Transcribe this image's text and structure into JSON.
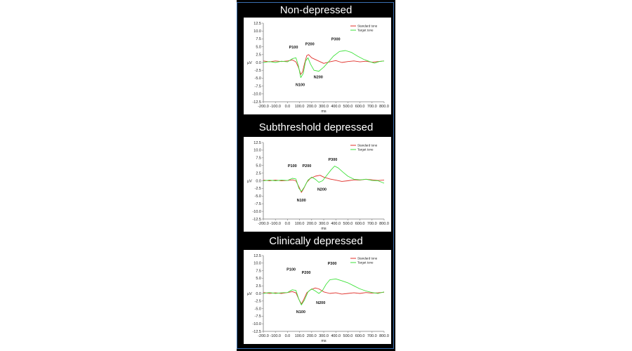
{
  "colors": {
    "background": "#ffffff",
    "figure": "#000000",
    "frame": "#3a6fb0",
    "standard_tone": "#e0302a",
    "target_tone": "#3ee23a",
    "axis": "#7a7a7a",
    "plot_area": "#ffffff"
  },
  "chart_data": [
    {
      "type": "line",
      "title": "Non-depressed",
      "xlabel": "ms",
      "ylabel": "µV",
      "xlim": [
        -200,
        800
      ],
      "ylim": [
        -12.5,
        12.5
      ],
      "x_ticks": [
        "-200.0",
        "-100.0",
        "0.0",
        "100.0",
        "200.0",
        "300.0",
        "400.0",
        "500.0",
        "600.0",
        "700.0",
        "800.0"
      ],
      "y_ticks": [
        "12.5",
        "10.0",
        "7.5",
        "5.0",
        "2.5",
        "0.0",
        "-2.5",
        "-5.0",
        "-7.5",
        "-10.0",
        "-12.5"
      ],
      "legend_position": "top-right",
      "series": [
        {
          "name": "Standard tone",
          "color": "#e0302a",
          "points": [
            [
              -200,
              0.5
            ],
            [
              -150,
              0.2
            ],
            [
              -100,
              0.5
            ],
            [
              -50,
              0.3
            ],
            [
              0,
              0.5
            ],
            [
              40,
              0.8
            ],
            [
              70,
              0.2
            ],
            [
              90,
              -1.5
            ],
            [
              110,
              -3.8
            ],
            [
              125,
              -3.0
            ],
            [
              140,
              -0.5
            ],
            [
              160,
              2.2
            ],
            [
              175,
              2.5
            ],
            [
              200,
              1.5
            ],
            [
              250,
              0.6
            ],
            [
              300,
              -0.3
            ],
            [
              350,
              0.2
            ],
            [
              400,
              0.6
            ],
            [
              450,
              0.0
            ],
            [
              500,
              0.3
            ],
            [
              550,
              0.5
            ],
            [
              600,
              0.2
            ],
            [
              650,
              0.4
            ],
            [
              700,
              0.1
            ],
            [
              750,
              0.3
            ],
            [
              800,
              0.5
            ]
          ]
        },
        {
          "name": "Target tone",
          "color": "#3ee23a",
          "points": [
            [
              -200,
              0.0
            ],
            [
              -150,
              0.3
            ],
            [
              -100,
              0.0
            ],
            [
              -50,
              0.4
            ],
            [
              0,
              0.2
            ],
            [
              40,
              1.2
            ],
            [
              70,
              1.5
            ],
            [
              90,
              -1.0
            ],
            [
              110,
              -4.8
            ],
            [
              130,
              -3.5
            ],
            [
              150,
              0.5
            ],
            [
              170,
              1.5
            ],
            [
              190,
              -0.5
            ],
            [
              220,
              -2.5
            ],
            [
              260,
              -2.8
            ],
            [
              300,
              -1.5
            ],
            [
              340,
              0.2
            ],
            [
              380,
              2.0
            ],
            [
              430,
              3.5
            ],
            [
              480,
              3.8
            ],
            [
              530,
              3.2
            ],
            [
              580,
              2.0
            ],
            [
              630,
              1.0
            ],
            [
              680,
              0.3
            ],
            [
              720,
              -0.2
            ],
            [
              760,
              0.3
            ],
            [
              800,
              0.5
            ]
          ]
        }
      ],
      "annotations": [
        {
          "label": "P100",
          "x": 50,
          "y": 4.5
        },
        {
          "label": "P200",
          "x": 185,
          "y": 5.5
        },
        {
          "label": "P300",
          "x": 400,
          "y": 7.0
        },
        {
          "label": "N100",
          "x": 105,
          "y": -7.5
        },
        {
          "label": "N200",
          "x": 255,
          "y": -5.0
        }
      ]
    },
    {
      "type": "line",
      "title": "Subthreshold depressed",
      "xlabel": "ms",
      "ylabel": "µV",
      "xlim": [
        -200,
        800
      ],
      "ylim": [
        -12.5,
        12.5
      ],
      "x_ticks": [
        "-200.0",
        "-100.0",
        "0.0",
        "100.0",
        "200.0",
        "300.0",
        "400.0",
        "500.0",
        "600.0",
        "700.0",
        "800.0"
      ],
      "y_ticks": [
        "12.5",
        "10.0",
        "7.5",
        "5.0",
        "2.5",
        "0.0",
        "-2.5",
        "-5.0",
        "-7.5",
        "-10.0",
        "-12.5"
      ],
      "legend_position": "top-right",
      "series": [
        {
          "name": "Standard tone",
          "color": "#e0302a",
          "points": [
            [
              -200,
              0.2
            ],
            [
              -150,
              0.0
            ],
            [
              -100,
              0.2
            ],
            [
              -50,
              0.0
            ],
            [
              0,
              0.1
            ],
            [
              40,
              0.3
            ],
            [
              70,
              0.0
            ],
            [
              95,
              -2.0
            ],
            [
              115,
              -3.8
            ],
            [
              135,
              -2.5
            ],
            [
              160,
              -0.5
            ],
            [
              190,
              0.8
            ],
            [
              230,
              1.5
            ],
            [
              270,
              1.8
            ],
            [
              300,
              1.2
            ],
            [
              350,
              0.6
            ],
            [
              400,
              0.2
            ],
            [
              450,
              -0.2
            ],
            [
              500,
              0.0
            ],
            [
              550,
              0.3
            ],
            [
              600,
              0.2
            ],
            [
              650,
              0.5
            ],
            [
              700,
              0.3
            ],
            [
              750,
              0.1
            ],
            [
              800,
              0.2
            ]
          ]
        },
        {
          "name": "Target tone",
          "color": "#3ee23a",
          "points": [
            [
              -200,
              0.0
            ],
            [
              -150,
              0.2
            ],
            [
              -100,
              0.0
            ],
            [
              -50,
              0.2
            ],
            [
              0,
              0.1
            ],
            [
              40,
              0.8
            ],
            [
              70,
              0.6
            ],
            [
              95,
              -2.5
            ],
            [
              115,
              -3.5
            ],
            [
              140,
              -2.0
            ],
            [
              170,
              0.2
            ],
            [
              200,
              1.2
            ],
            [
              230,
              0.5
            ],
            [
              260,
              -0.5
            ],
            [
              290,
              0.0
            ],
            [
              320,
              1.5
            ],
            [
              360,
              3.5
            ],
            [
              390,
              4.8
            ],
            [
              420,
              4.2
            ],
            [
              460,
              2.8
            ],
            [
              500,
              1.5
            ],
            [
              550,
              0.5
            ],
            [
              600,
              0.3
            ],
            [
              650,
              0.5
            ],
            [
              700,
              0.1
            ],
            [
              750,
              0.0
            ],
            [
              800,
              -0.8
            ]
          ]
        }
      ],
      "annotations": [
        {
          "label": "P100",
          "x": 40,
          "y": 4.5
        },
        {
          "label": "P200",
          "x": 160,
          "y": 4.5
        },
        {
          "label": "P300",
          "x": 375,
          "y": 6.5
        },
        {
          "label": "N100",
          "x": 115,
          "y": -6.8
        },
        {
          "label": "N200",
          "x": 285,
          "y": -3.2
        }
      ]
    },
    {
      "type": "line",
      "title": "Clinically depressed",
      "xlabel": "ms",
      "ylabel": "µV",
      "xlim": [
        -200,
        800
      ],
      "ylim": [
        -12.5,
        12.5
      ],
      "x_ticks": [
        "-200.0",
        "-100.0",
        "0.0",
        "100.0",
        "200.0",
        "300.0",
        "400.0",
        "500.0",
        "600.0",
        "700.0",
        "800.0"
      ],
      "y_ticks": [
        "12.5",
        "10.0",
        "7.5",
        "5.0",
        "2.5",
        "0.0",
        "-2.5",
        "-5.0",
        "-7.5",
        "-10.0",
        "-12.5"
      ],
      "legend_position": "top-right",
      "series": [
        {
          "name": "Standard tone",
          "color": "#e0302a",
          "points": [
            [
              -200,
              0.3
            ],
            [
              -150,
              0.0
            ],
            [
              -100,
              0.2
            ],
            [
              -50,
              0.0
            ],
            [
              0,
              0.3
            ],
            [
              40,
              0.6
            ],
            [
              70,
              0.2
            ],
            [
              95,
              -2.0
            ],
            [
              115,
              -3.5
            ],
            [
              135,
              -2.0
            ],
            [
              160,
              0.2
            ],
            [
              190,
              1.2
            ],
            [
              230,
              1.8
            ],
            [
              260,
              1.5
            ],
            [
              300,
              0.5
            ],
            [
              350,
              0.0
            ],
            [
              400,
              0.2
            ],
            [
              450,
              -0.2
            ],
            [
              500,
              0.0
            ],
            [
              550,
              0.2
            ],
            [
              600,
              0.0
            ],
            [
              650,
              0.3
            ],
            [
              700,
              0.1
            ],
            [
              750,
              0.2
            ],
            [
              800,
              0.4
            ]
          ]
        },
        {
          "name": "Target tone",
          "color": "#3ee23a",
          "points": [
            [
              -200,
              0.0
            ],
            [
              -150,
              0.3
            ],
            [
              -100,
              0.0
            ],
            [
              -50,
              0.2
            ],
            [
              0,
              0.3
            ],
            [
              40,
              1.2
            ],
            [
              70,
              1.0
            ],
            [
              95,
              -2.0
            ],
            [
              115,
              -3.8
            ],
            [
              140,
              -2.2
            ],
            [
              170,
              0.5
            ],
            [
              200,
              1.5
            ],
            [
              230,
              0.8
            ],
            [
              260,
              0.0
            ],
            [
              290,
              1.0
            ],
            [
              320,
              3.0
            ],
            [
              350,
              4.5
            ],
            [
              400,
              4.8
            ],
            [
              450,
              4.2
            ],
            [
              500,
              3.5
            ],
            [
              550,
              2.5
            ],
            [
              600,
              1.5
            ],
            [
              650,
              0.8
            ],
            [
              700,
              0.3
            ],
            [
              750,
              0.0
            ],
            [
              800,
              0.5
            ]
          ]
        }
      ],
      "annotations": [
        {
          "label": "P100",
          "x": 30,
          "y": 7.5
        },
        {
          "label": "P200",
          "x": 155,
          "y": 6.5
        },
        {
          "label": "P300",
          "x": 370,
          "y": 9.5
        },
        {
          "label": "N100",
          "x": 110,
          "y": -6.5
        },
        {
          "label": "N200",
          "x": 275,
          "y": -3.5
        }
      ]
    }
  ]
}
